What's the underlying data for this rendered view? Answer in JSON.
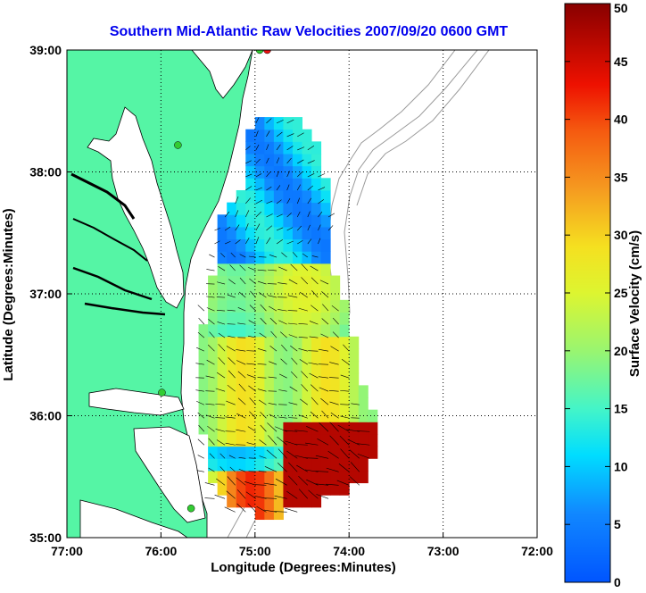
{
  "title": "Southern Mid-Atlantic Raw Velocities 2007/09/20 0600 GMT",
  "xlabel": "Longitude (Degrees:Minutes)",
  "ylabel": "Latitude (Degrees:Minutes)",
  "x_ticks": [
    "77:00",
    "76:00",
    "75:00",
    "74:00",
    "73:00",
    "72:00"
  ],
  "y_ticks": [
    "39:00",
    "38:00",
    "37:00",
    "36:00",
    "35:00"
  ],
  "colorbar": {
    "label": "Surface Velocity (cm/s)",
    "ticks": [
      "0",
      "5",
      "10",
      "15",
      "20",
      "25",
      "30",
      "35",
      "40",
      "45",
      "50"
    ],
    "min": 0,
    "max": 50
  },
  "colors": {
    "title": "#0000ee",
    "land": "#55f5a5",
    "coast": "#000000",
    "bathymetry": "#9a9a9a",
    "arrows": "#000000",
    "station_green": "#33cc33",
    "station_red": "#ee1111"
  },
  "map": {
    "lon_range": [
      -77,
      -72
    ],
    "lat_range": [
      35,
      39
    ],
    "grid": true,
    "stations": [
      {
        "lon": -74.87,
        "lat": 39.0,
        "color": "red"
      },
      {
        "lon": -74.95,
        "lat": 39.0,
        "color": "green"
      },
      {
        "lon": -75.82,
        "lat": 38.22,
        "color": "green"
      },
      {
        "lon": -75.99,
        "lat": 36.19,
        "color": "green"
      },
      {
        "lon": -75.68,
        "lat": 35.24,
        "color": "green"
      }
    ]
  }
}
